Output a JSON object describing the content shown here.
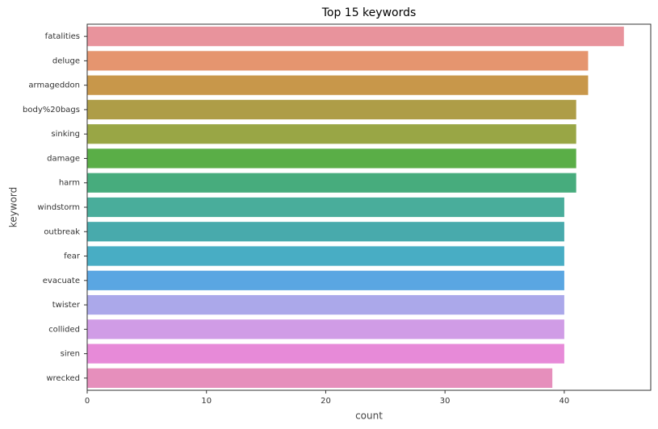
{
  "chart_data": {
    "type": "bar",
    "orientation": "horizontal",
    "title": "Top 15 keywords",
    "x_label": "count",
    "y_label": "keyword",
    "categories": [
      "fatalities",
      "deluge",
      "armageddon",
      "body%20bags",
      "sinking",
      "damage",
      "harm",
      "windstorm",
      "outbreak",
      "fear",
      "evacuate",
      "twister",
      "collided",
      "siren",
      "wrecked"
    ],
    "values": [
      45,
      42,
      42,
      41,
      41,
      41,
      41,
      40,
      40,
      40,
      40,
      40,
      40,
      40,
      39
    ],
    "colors": [
      "#e8939c",
      "#e5956f",
      "#c8974a",
      "#ae9d47",
      "#99a645",
      "#5aae47",
      "#47ac7d",
      "#49ad9b",
      "#48aaac",
      "#48adc4",
      "#5aa6e2",
      "#aba8ea",
      "#d09ce6",
      "#e78ad8",
      "#e68fbc"
    ],
    "xlim": [
      0,
      47.25
    ],
    "xticks": [
      0,
      10,
      20,
      30,
      40
    ],
    "grid": false
  }
}
